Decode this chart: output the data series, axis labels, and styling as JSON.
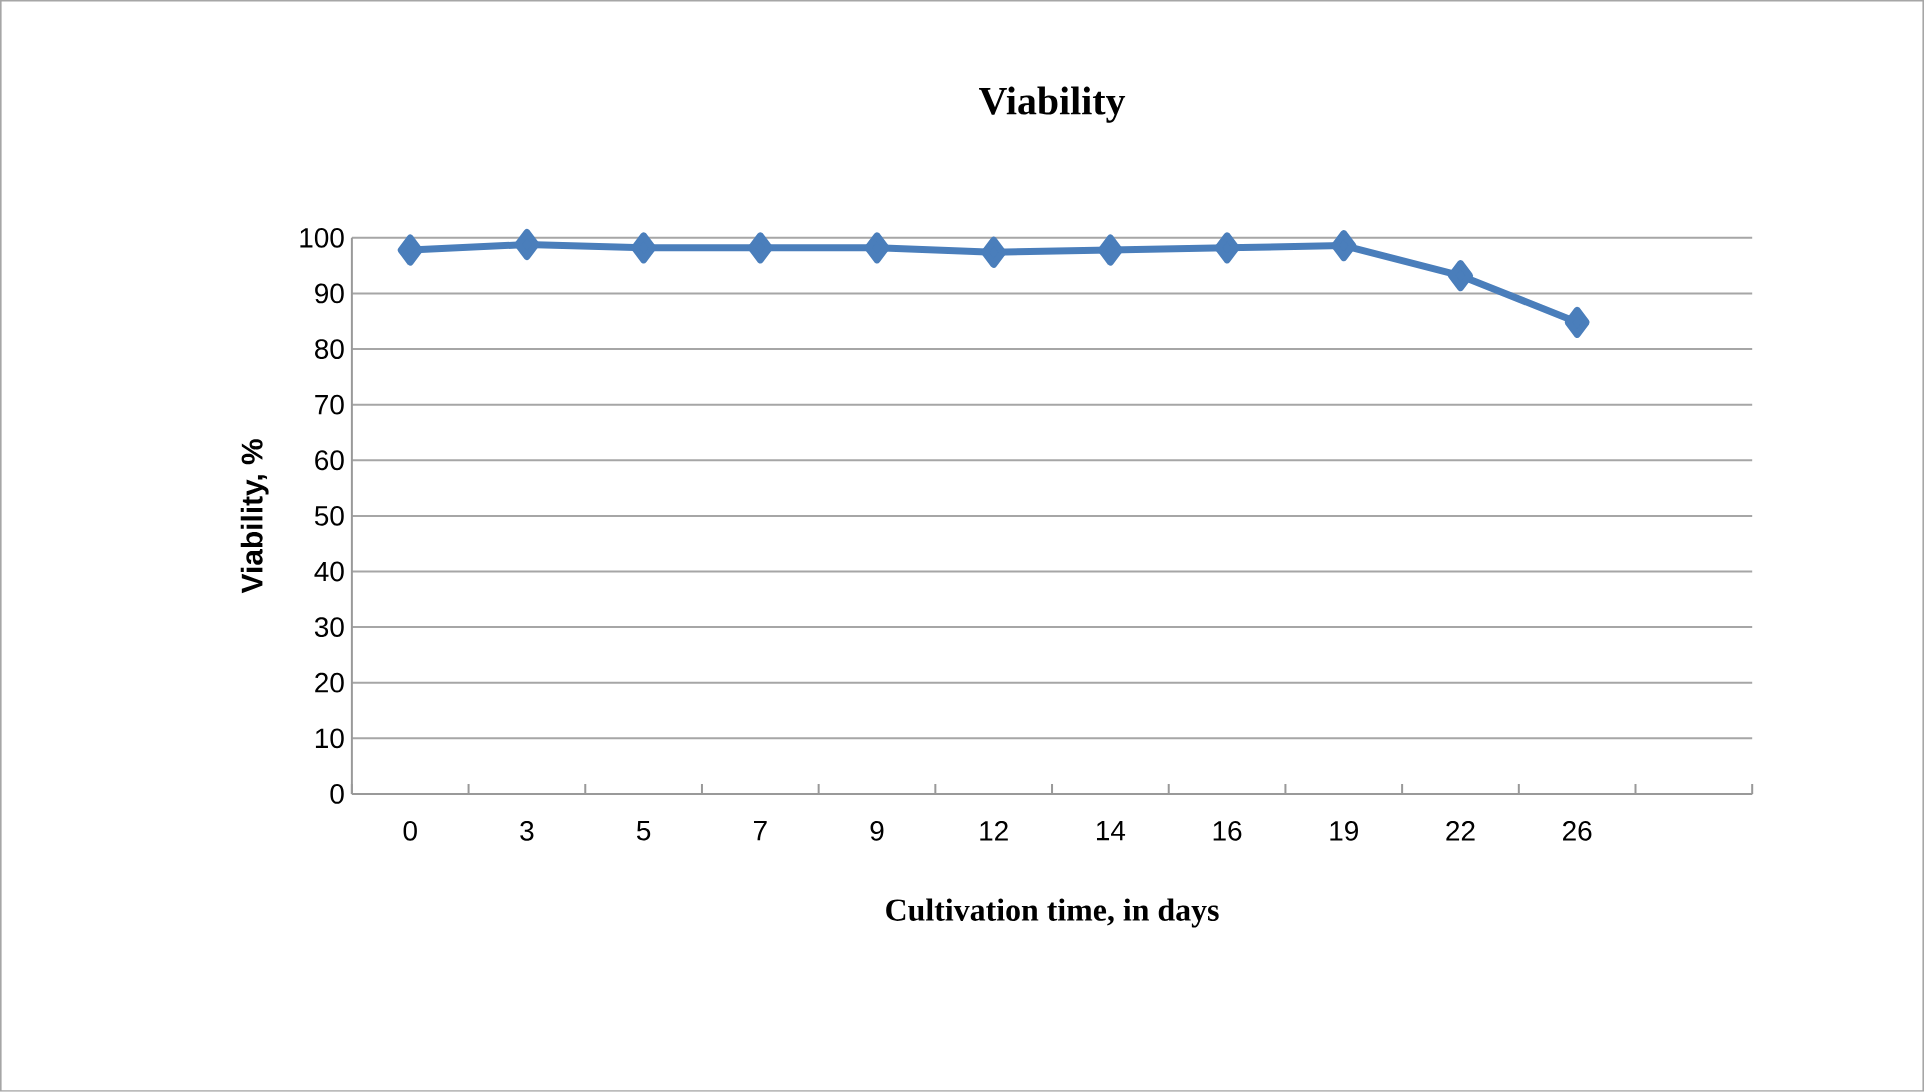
{
  "chart_data": {
    "type": "line",
    "title": "Viability",
    "xlabel": "Cultivation time, in days",
    "ylabel": "Viability, %",
    "categories": [
      "0",
      "3",
      "5",
      "7",
      "9",
      "12",
      "14",
      "16",
      "19",
      "22",
      "26",
      null
    ],
    "series": [
      {
        "color": "#4a7ebb",
        "values": [
          97.8,
          98.8,
          98.2,
          98.2,
          98.2,
          97.4,
          97.8,
          98.2,
          98.6,
          93.2,
          84.8,
          null
        ]
      }
    ],
    "ylim": [
      0,
      100
    ],
    "yticks": [
      0,
      10,
      20,
      30,
      40,
      50,
      60,
      70,
      80,
      90,
      100
    ],
    "grid": "y",
    "marker": "diamond",
    "line_style": "solid"
  }
}
